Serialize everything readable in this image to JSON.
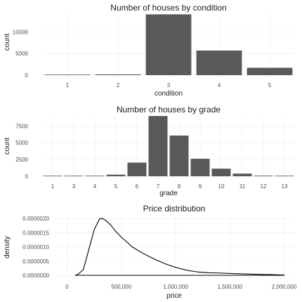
{
  "chart_data": [
    {
      "type": "bar",
      "title": "Number of houses by condition",
      "xlabel": "condition",
      "ylabel": "count",
      "categories": [
        "1",
        "2",
        "3",
        "4",
        "5"
      ],
      "values": [
        30,
        170,
        14030,
        5680,
        1700
      ],
      "ylim": [
        0,
        14100
      ],
      "yticks": [
        0,
        5000,
        10000
      ],
      "grid": true,
      "bar_color": "#595959"
    },
    {
      "type": "bar",
      "title": "Number of houses by grade",
      "xlabel": "grade",
      "ylabel": "count",
      "categories": [
        "1",
        "3",
        "4",
        "5",
        "6",
        "7",
        "8",
        "9",
        "10",
        "11",
        "12",
        "13"
      ],
      "values": [
        1,
        3,
        29,
        242,
        2038,
        8981,
        6068,
        2615,
        1134,
        399,
        90,
        13
      ],
      "ylim": [
        0,
        9000
      ],
      "yticks": [
        0,
        2500,
        5000,
        7500
      ],
      "grid": true,
      "bar_color": "#595959"
    },
    {
      "type": "line",
      "title": "Price distribution",
      "xlabel": "price",
      "ylabel": "density",
      "series": [
        {
          "x": [
            75000,
            100000,
            150000,
            200000,
            250000,
            300000,
            325000,
            350000,
            400000,
            450000,
            500000,
            550000,
            600000,
            700000,
            800000,
            900000,
            1000000,
            1100000,
            1200000,
            1300000,
            1400000,
            1600000,
            1800000,
            2000000
          ],
          "y": [
            0,
            3e-08,
            2e-07,
            9e-07,
            1.6e-06,
            1.99e-06,
            2e-06,
            1.95e-06,
            1.78e-06,
            1.54e-06,
            1.34e-06,
            1.18e-06,
            1e-06,
            7.7e-07,
            5.8e-07,
            4.1e-07,
            2.8e-07,
            1.8e-07,
            1.2e-07,
            9e-08,
            8e-08,
            5e-08,
            3e-08,
            1e-08
          ]
        }
      ],
      "baseline_x": [
        75000,
        2000000
      ],
      "xlim": [
        -100000,
        2100000
      ],
      "ylim": [
        0,
        2.1e-06
      ],
      "xticks": [
        0,
        500000,
        1000000,
        1500000,
        2000000
      ],
      "xtick_labels": [
        "0",
        "500,000",
        "1,000,000",
        "1,500,000",
        "2,000,000"
      ],
      "yticks": [
        0,
        5e-07,
        1e-06,
        1.5e-06,
        2e-06
      ],
      "ytick_labels": [
        "0.0000000",
        "0.0000005",
        "0.0000010",
        "0.0000015",
        "0.0000020"
      ],
      "grid": true,
      "line_color": "#000000"
    }
  ]
}
